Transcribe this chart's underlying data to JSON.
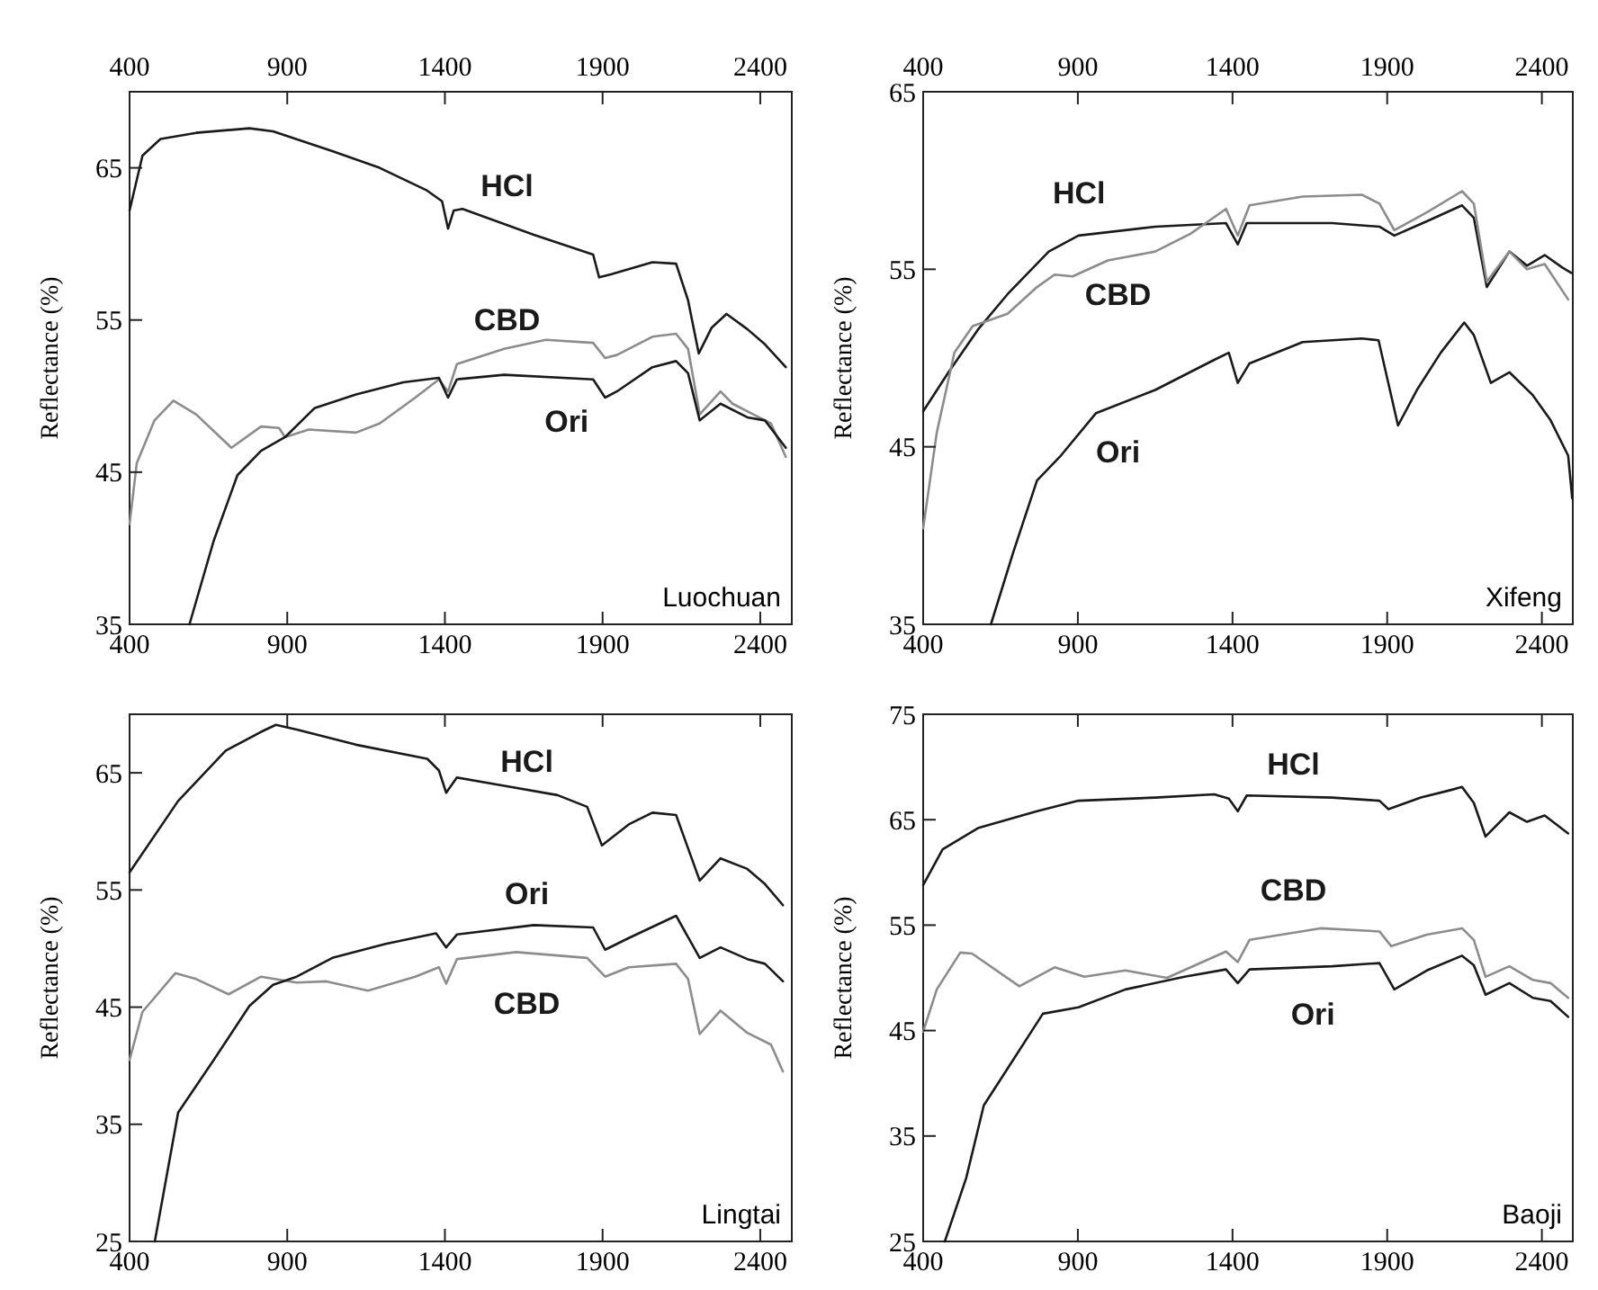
{
  "chart_data": [
    {
      "type": "line",
      "title": "Luochuan",
      "ylabel": "Reflectance (%)",
      "xlim": [
        400,
        2500
      ],
      "xticks": [
        400,
        900,
        1400,
        1900,
        2400
      ],
      "x2lim": [
        400,
        2500
      ],
      "x2ticks": [
        400,
        900,
        1400,
        1900,
        2400
      ],
      "ylim": [
        35,
        70
      ],
      "yticks": [
        35,
        45,
        55,
        65
      ],
      "series": [
        {
          "name": "HCl",
          "color": "#1a1a1a",
          "x": [
            400,
            441,
            498,
            611,
            780,
            855,
            1043,
            1193,
            1344,
            1391,
            1410,
            1428,
            1456,
            1682,
            1870,
            1889,
            1926,
            2058,
            2133,
            2171,
            2205,
            2246,
            2293,
            2359,
            2415,
            2481
          ],
          "values": [
            62.2,
            65.8,
            66.9,
            67.3,
            67.6,
            67.4,
            66.1,
            65.0,
            63.5,
            62.8,
            61.0,
            62.2,
            62.3,
            60.6,
            59.3,
            57.8,
            58.0,
            58.8,
            58.7,
            56.3,
            52.8,
            54.5,
            55.4,
            54.4,
            53.4,
            51.9
          ]
        },
        {
          "name": "CBD",
          "color": "#8c8c8c",
          "x": [
            400,
            423,
            479,
            539,
            611,
            723,
            817,
            874,
            893,
            968,
            1118,
            1193,
            1306,
            1381,
            1410,
            1438,
            1588,
            1720,
            1870,
            1908,
            1945,
            2058,
            2133,
            2171,
            2208,
            2274,
            2312,
            2378,
            2434,
            2481
          ],
          "values": [
            41.6,
            45.6,
            48.4,
            49.7,
            48.8,
            46.6,
            48.0,
            47.9,
            47.3,
            47.8,
            47.6,
            48.2,
            49.9,
            51.1,
            50.3,
            52.1,
            53.1,
            53.7,
            53.5,
            52.5,
            52.7,
            53.9,
            54.1,
            53.1,
            48.8,
            50.3,
            49.5,
            48.8,
            48.2,
            46.0
          ]
        },
        {
          "name": "Ori",
          "color": "#1a1a1a",
          "x": [
            590,
            667,
            742,
            817,
            893,
            986,
            1118,
            1268,
            1381,
            1410,
            1438,
            1588,
            1870,
            1908,
            1945,
            2058,
            2133,
            2171,
            2208,
            2274,
            2359,
            2415,
            2481
          ],
          "values": [
            35,
            40.5,
            44.8,
            46.4,
            47.3,
            49.2,
            50.1,
            50.9,
            51.2,
            49.9,
            51.1,
            51.4,
            51.1,
            49.9,
            50.3,
            51.9,
            52.3,
            51.5,
            48.4,
            49.5,
            48.6,
            48.4,
            46.6
          ]
        }
      ]
    },
    {
      "type": "line",
      "title": "Xifeng",
      "ylabel": "Reflectance (%)",
      "xlim": [
        400,
        2500
      ],
      "xticks": [
        400,
        900,
        1400,
        1900,
        2400
      ],
      "x2lim": [
        400,
        2500
      ],
      "x2ticks": [
        400,
        900,
        1400,
        1900,
        2400
      ],
      "ylim": [
        35,
        65
      ],
      "yticks": [
        35,
        45,
        55,
        65
      ],
      "series": [
        {
          "name": "HCl",
          "color": "#1a1a1a",
          "x": [
            400,
            482,
            577,
            673,
            806,
            902,
            1150,
            1379,
            1417,
            1446,
            1722,
            1875,
            1923,
            2028,
            2142,
            2180,
            2222,
            2295,
            2352,
            2409,
            2466,
            2495
          ],
          "values": [
            47.0,
            49.2,
            51.6,
            53.6,
            56.0,
            56.9,
            57.4,
            57.6,
            56.4,
            57.6,
            57.6,
            57.4,
            56.9,
            57.7,
            58.6,
            57.9,
            54.0,
            56.0,
            55.2,
            55.8,
            55.1,
            54.8
          ]
        },
        {
          "name": "CBD",
          "color": "#8c8c8c",
          "x": [
            400,
            444,
            501,
            560,
            673,
            768,
            825,
            883,
            997,
            1150,
            1264,
            1379,
            1417,
            1455,
            1627,
            1818,
            1875,
            1923,
            2028,
            2142,
            2180,
            2222,
            2295,
            2352,
            2409,
            2485
          ],
          "values": [
            40.4,
            45.8,
            50.3,
            51.8,
            52.5,
            54.0,
            54.7,
            54.6,
            55.5,
            56.0,
            57.0,
            58.4,
            56.9,
            58.6,
            59.1,
            59.2,
            58.7,
            57.2,
            58.2,
            59.4,
            58.7,
            54.3,
            56.0,
            55.0,
            55.3,
            53.3
          ]
        },
        {
          "name": "Ori",
          "color": "#1a1a1a",
          "x": [
            619,
            692,
            768,
            845,
            959,
            1150,
            1341,
            1388,
            1417,
            1455,
            1627,
            1818,
            1872,
            1935,
            1996,
            2073,
            2149,
            2180,
            2235,
            2295,
            2371,
            2428,
            2485,
            2498
          ],
          "values": [
            35,
            39.1,
            43.1,
            44.5,
            46.9,
            48.2,
            49.9,
            50.3,
            48.6,
            49.7,
            50.9,
            51.1,
            51.0,
            46.2,
            48.2,
            50.3,
            52.0,
            51.3,
            48.6,
            49.2,
            47.9,
            46.5,
            44.5,
            42.1
          ]
        }
      ]
    },
    {
      "type": "line",
      "title": "Lingtai",
      "ylabel": "Reflectance (%)",
      "xlim": [
        400,
        2500
      ],
      "xticks": [
        400,
        900,
        1400,
        1900,
        2400
      ],
      "ylim": [
        25,
        70
      ],
      "yticks": [
        25,
        35,
        45,
        55,
        65
      ],
      "series": [
        {
          "name": "HCl",
          "color": "#1a1a1a",
          "x": [
            400,
            554,
            705,
            817,
            864,
            930,
            1118,
            1344,
            1381,
            1404,
            1438,
            1588,
            1757,
            1851,
            1898,
            1983,
            2058,
            2133,
            2208,
            2274,
            2359,
            2415,
            2472
          ],
          "values": [
            56.5,
            62.6,
            66.9,
            68.5,
            69.1,
            68.7,
            67.4,
            66.2,
            65.2,
            63.3,
            64.6,
            63.9,
            63.1,
            62.1,
            58.8,
            60.6,
            61.6,
            61.4,
            55.8,
            57.7,
            56.8,
            55.5,
            53.7
          ]
        },
        {
          "name": "CBD",
          "color": "#8c8c8c",
          "x": [
            400,
            441,
            545,
            611,
            714,
            817,
            930,
            1024,
            1156,
            1306,
            1381,
            1404,
            1438,
            1626,
            1851,
            1908,
            1983,
            2133,
            2171,
            2208,
            2274,
            2359,
            2434,
            2472
          ],
          "values": [
            40.5,
            44.6,
            47.9,
            47.4,
            46.1,
            47.6,
            47.1,
            47.2,
            46.4,
            47.6,
            48.4,
            47.0,
            49.1,
            49.7,
            49.2,
            47.6,
            48.4,
            48.7,
            47.4,
            42.7,
            44.7,
            42.8,
            41.8,
            39.5
          ]
        },
        {
          "name": "Ori",
          "color": "#1a1a1a",
          "x": [
            480,
            554,
            667,
            780,
            855,
            930,
            1043,
            1212,
            1372,
            1404,
            1438,
            1682,
            1870,
            1908,
            1983,
            2133,
            2208,
            2274,
            2359,
            2415,
            2472
          ],
          "values": [
            25,
            36.0,
            40.5,
            45.1,
            46.9,
            47.6,
            49.2,
            50.4,
            51.3,
            50.1,
            51.2,
            52.0,
            51.8,
            49.9,
            50.9,
            52.8,
            49.2,
            50.1,
            49.1,
            48.7,
            47.2
          ]
        }
      ]
    },
    {
      "type": "line",
      "title": "Baoji",
      "ylabel": "Reflectance (%)",
      "xlim": [
        400,
        2500
      ],
      "xticks": [
        400,
        900,
        1400,
        1900,
        2400
      ],
      "ylim": [
        25,
        75
      ],
      "yticks": [
        25,
        35,
        45,
        55,
        65,
        75
      ],
      "series": [
        {
          "name": "HCl",
          "color": "#1a1a1a",
          "x": [
            400,
            463,
            577,
            768,
            902,
            1150,
            1341,
            1388,
            1417,
            1446,
            1722,
            1875,
            1904,
            2009,
            2104,
            2142,
            2180,
            2218,
            2295,
            2352,
            2409,
            2485
          ],
          "values": [
            58.8,
            62.2,
            64.2,
            65.8,
            66.8,
            67.1,
            67.4,
            67.0,
            65.8,
            67.3,
            67.1,
            66.8,
            66.0,
            67.1,
            67.8,
            68.1,
            66.6,
            63.4,
            65.7,
            64.8,
            65.4,
            63.7
          ]
        },
        {
          "name": "CBD",
          "color": "#8c8c8c",
          "x": [
            400,
            444,
            520,
            558,
            711,
            825,
            921,
            1054,
            1188,
            1379,
            1417,
            1455,
            1684,
            1875,
            1913,
            2028,
            2142,
            2180,
            2218,
            2295,
            2371,
            2428,
            2485
          ],
          "values": [
            44.9,
            48.9,
            52.4,
            52.3,
            49.2,
            51.0,
            50.1,
            50.7,
            50.0,
            52.5,
            51.5,
            53.6,
            54.7,
            54.4,
            53.0,
            54.1,
            54.7,
            53.6,
            50.1,
            51.1,
            49.8,
            49.5,
            48.1
          ]
        },
        {
          "name": "Ori",
          "color": "#1a1a1a",
          "x": [
            470,
            539,
            596,
            673,
            787,
            902,
            1054,
            1245,
            1379,
            1417,
            1455,
            1722,
            1875,
            1923,
            2028,
            2142,
            2180,
            2218,
            2295,
            2371,
            2428,
            2485
          ],
          "values": [
            25,
            31.0,
            37.9,
            41.4,
            46.6,
            47.2,
            48.9,
            50.1,
            50.8,
            49.5,
            50.8,
            51.1,
            51.4,
            48.9,
            50.7,
            52.1,
            51.2,
            48.4,
            49.5,
            48.1,
            47.8,
            46.3
          ]
        }
      ]
    }
  ]
}
